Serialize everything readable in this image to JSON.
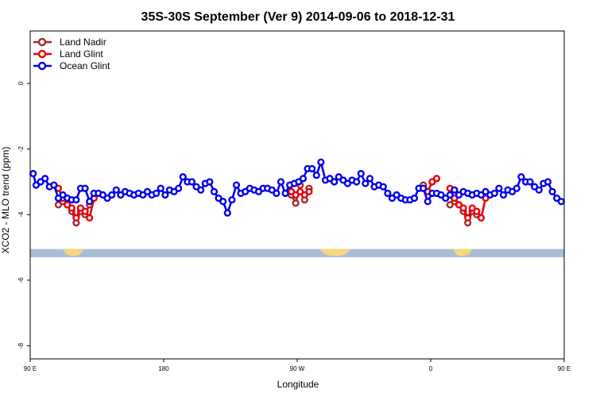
{
  "chart_data": {
    "type": "line",
    "title": "35S-30S September (Ver 9)   2014-09-06 to 2018-12-31",
    "xlabel": "Longitude",
    "ylabel": "XCO2 - MLO trend (ppm)",
    "xlim": [
      90,
      450
    ],
    "ylim": [
      -8.4,
      1.6
    ],
    "x_ticks": [
      {
        "value": 90,
        "label": "90 E"
      },
      {
        "value": 180,
        "label": "180"
      },
      {
        "value": 270,
        "label": "90 W"
      },
      {
        "value": 360,
        "label": "0"
      },
      {
        "value": 450,
        "label": "90 E"
      },
      {
        "value": 540,
        "label": "180"
      }
    ],
    "y_ticks": [
      {
        "value": 0,
        "label": "0"
      },
      {
        "value": -2,
        "label": "-2"
      },
      {
        "value": -4,
        "label": "-4"
      },
      {
        "value": -6,
        "label": "-6"
      },
      {
        "value": -8,
        "label": "-8"
      }
    ],
    "legend_position": "top-left",
    "land_strip": {
      "y_range": [
        -5.3,
        -5.05
      ],
      "ocean_color": "#a9bdd6",
      "land_color": "#f7d77d",
      "land_spans": [
        [
          112,
          126
        ],
        [
          285,
          306
        ],
        [
          375,
          388
        ],
        [
          473,
          512
        ]
      ]
    },
    "series": [
      {
        "name": "Land Nadir",
        "color": "#a52a2a",
        "x": [
          109,
          112,
          115,
          118,
          121,
          124,
          127,
          130,
          266,
          269,
          272,
          275,
          278,
          355,
          358,
          361,
          364,
          373,
          376,
          379,
          382,
          385,
          388,
          391
        ],
        "y": [
          -3.7,
          -3.6,
          -3.7,
          -3.9,
          -4.25,
          -3.9,
          -4.0,
          -3.7,
          -3.4,
          -3.65,
          -3.1,
          -3.55,
          -3.2,
          -3.1,
          -3.3,
          -3.0,
          -2.9,
          -3.7,
          -3.6,
          -3.7,
          -3.9,
          -4.25,
          -3.9,
          -4.0
        ]
      },
      {
        "name": "Land Glint",
        "color": "#e8000b",
        "x": [
          109,
          112,
          115,
          118,
          121,
          124,
          127,
          130,
          133,
          266,
          269,
          272,
          275,
          278,
          355,
          358,
          361,
          364,
          373,
          376,
          379,
          382,
          385,
          388,
          391,
          394,
          397
        ],
        "y": [
          -3.2,
          -3.5,
          -3.7,
          -3.8,
          -4.1,
          -3.8,
          -3.9,
          -4.1,
          -3.5,
          -3.3,
          -3.4,
          -3.3,
          -3.4,
          -3.3,
          -3.2,
          -3.3,
          -3.0,
          -2.9,
          -3.2,
          -3.5,
          -3.7,
          -3.8,
          -4.1,
          -3.8,
          -3.9,
          -4.1,
          -3.5
        ]
      },
      {
        "name": "Ocean Glint",
        "color": "#0000ee",
        "x": [
          92,
          94,
          97,
          100,
          103,
          106,
          109,
          112,
          115,
          118,
          121,
          124,
          127,
          130,
          133,
          136,
          139,
          142,
          145,
          148,
          151,
          154,
          157,
          160,
          163,
          166,
          169,
          172,
          175,
          178,
          181,
          184,
          187,
          190,
          193,
          196,
          199,
          202,
          205,
          208,
          211,
          214,
          217,
          220,
          223,
          226,
          229,
          232,
          235,
          238,
          241,
          244,
          247,
          250,
          253,
          256,
          259,
          262,
          265,
          268,
          271,
          274,
          277,
          280,
          283,
          286,
          289,
          292,
          295,
          298,
          301,
          304,
          307,
          310,
          313,
          316,
          319,
          322,
          325,
          328,
          331,
          334,
          337,
          340,
          343,
          346,
          349,
          352,
          355,
          358,
          361,
          364,
          367,
          370,
          373,
          376,
          379,
          382,
          385,
          388,
          391,
          394,
          397,
          400,
          403,
          406,
          409,
          412,
          415,
          418,
          421,
          424,
          427,
          430,
          433,
          436,
          439,
          442,
          445,
          448
        ],
        "y": [
          -2.75,
          -3.1,
          -3.0,
          -2.9,
          -3.15,
          -3.1,
          -3.5,
          -3.4,
          -3.5,
          -3.55,
          -3.55,
          -3.2,
          -3.2,
          -3.6,
          -3.35,
          -3.35,
          -3.4,
          -3.5,
          -3.4,
          -3.25,
          -3.4,
          -3.3,
          -3.35,
          -3.4,
          -3.35,
          -3.4,
          -3.3,
          -3.4,
          -3.35,
          -3.2,
          -3.4,
          -3.25,
          -3.3,
          -3.2,
          -2.85,
          -3.0,
          -3.0,
          -3.15,
          -3.25,
          -3.05,
          -3.0,
          -3.3,
          -3.5,
          -3.6,
          -3.95,
          -3.55,
          -3.1,
          -3.35,
          -3.3,
          -3.2,
          -3.25,
          -3.3,
          -3.2,
          -3.2,
          -3.25,
          -3.35,
          -3.0,
          -3.35,
          -3.1,
          -3.05,
          -3.0,
          -2.9,
          -2.6,
          -2.6,
          -2.8,
          -2.4,
          -2.95,
          -2.9,
          -3.0,
          -2.85,
          -2.95,
          -3.05,
          -2.95,
          -3.0,
          -2.75,
          -3.05,
          -2.9,
          -3.15,
          -3.1,
          -3.15,
          -3.35,
          -3.5,
          -3.4,
          -3.5,
          -3.55,
          -3.55,
          -3.5,
          -3.2,
          -3.2,
          -3.6,
          -3.35,
          -3.35,
          -3.4,
          -3.5,
          -3.4,
          -3.25,
          -3.4,
          -3.3,
          -3.35,
          -3.4,
          -3.35,
          -3.4,
          -3.3,
          -3.4,
          -3.35,
          -3.2,
          -3.4,
          -3.25,
          -3.3,
          -3.2,
          -2.85,
          -3.0,
          -3.0,
          -3.15,
          -3.25,
          -3.05,
          -3.0,
          -3.3,
          -3.5,
          -3.6
        ]
      }
    ]
  }
}
